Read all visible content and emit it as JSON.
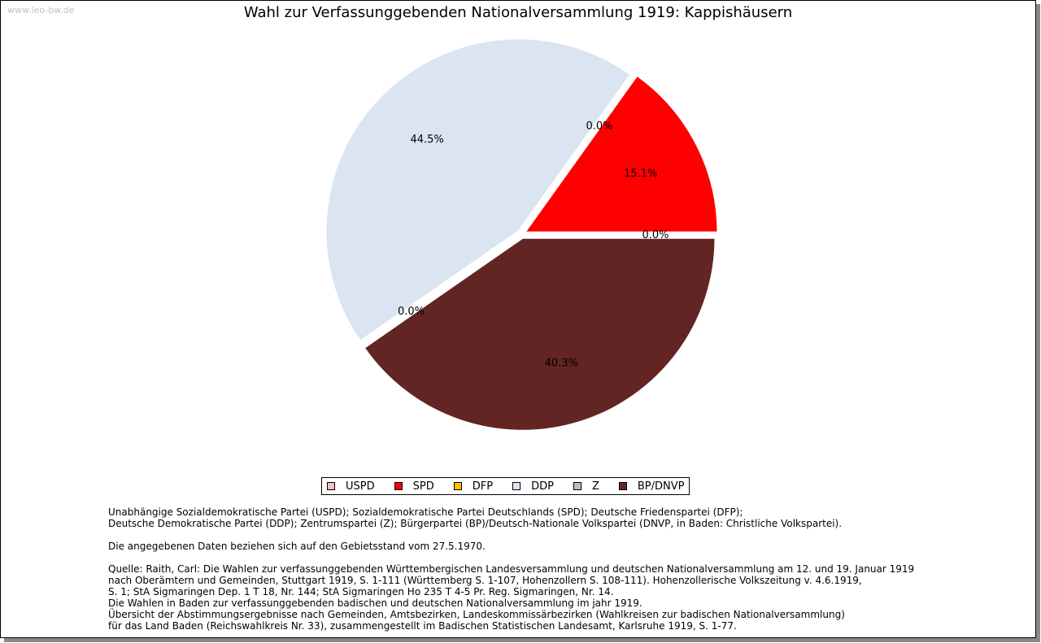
{
  "watermark": "www.leo-bw.de",
  "chart_data": {
    "type": "pie",
    "title": "Wahl zur Verfassunggebenden Nationalversammlung 1919: Kappishäusern",
    "slices": [
      {
        "name": "USPD",
        "value": 0.0,
        "label": "0.0%",
        "color": "#f0c0c0"
      },
      {
        "name": "SPD",
        "value": 15.1,
        "label": "15.1%",
        "color": "#ff0000"
      },
      {
        "name": "DFP",
        "value": 0.0,
        "label": "0.0%",
        "color": "#ffc000"
      },
      {
        "name": "DDP",
        "value": 44.5,
        "label": "44.5%",
        "color": "#dbe5f1"
      },
      {
        "name": "Z",
        "value": 0.0,
        "label": "0.0%",
        "color": "#c0c0c0"
      },
      {
        "name": "BP/DNVP",
        "value": 40.3,
        "label": "40.3%",
        "color": "#632523"
      }
    ],
    "legend": {
      "position": "bottom",
      "entries": [
        "USPD",
        "SPD",
        "DFP",
        "DDP",
        "Z",
        "BP/DNVP"
      ]
    }
  },
  "notes": {
    "parties_line1": "Unabhängige Sozialdemokratische Partei (USPD); Sozialdemokratische Partei Deutschlands (SPD); Deutsche Friedenspartei (DFP);",
    "parties_line2": "Deutsche Demokratische Partei (DDP); Zentrumspartei (Z); Bürgerpartei (BP)/Deutsch-Nationale Volkspartei (DNVP, in Baden: Christliche Volkspartei).",
    "territory": "Die angegebenen Daten beziehen sich auf den Gebietsstand vom 27.5.1970.",
    "source_lines": [
      "Quelle: Raith, Carl: Die Wahlen zur verfassunggebenden Württembergischen Landesversammlung und deutschen Nationalversammlung am 12. und 19. Januar 1919",
      "nach Oberämtern und Gemeinden, Stuttgart 1919, S. 1-111 (Württemberg S. 1-107, Hohenzollern S. 108-111). Hohenzollerische Volkszeitung v. 4.6.1919,",
      "S. 1; StA Sigmaringen Dep. 1 T 18, Nr. 144; StA Sigmaringen Ho 235 T 4-5 Pr. Reg. Sigmaringen, Nr. 14.",
      "Die Wahlen in Baden zur verfassunggebenden badischen und deutschen Nationalversammlung im jahr 1919.",
      "Übersicht der Abstimmungsergebnisse nach Gemeinden, Amtsbezirken, Landeskommissärbezirken (Wahlkreisen zur badischen Nationalversammlung)",
      "für das Land Baden (Reichswahlkreis Nr. 33), zusammengestellt im Badischen Statistischen Landesamt, Karlsruhe 1919, S. 1-77."
    ]
  }
}
